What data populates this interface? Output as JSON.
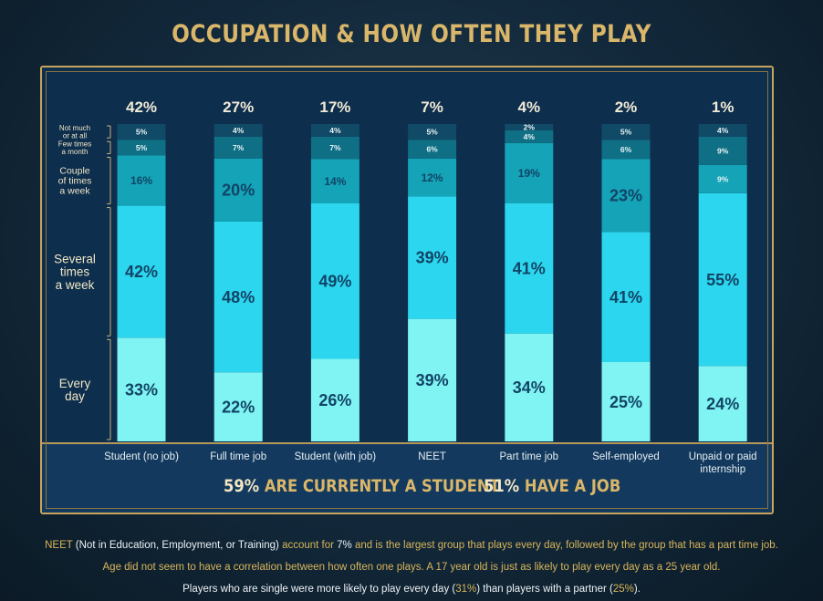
{
  "title": "OCCUPATION & HOW OFTEN THEY PLAY",
  "chart_data": {
    "type": "bar",
    "stacked": true,
    "categories": [
      "Student (no job)",
      "Full time job",
      "Student (with job)",
      "NEET",
      "Part time job",
      "Self-employed",
      "Unpaid or paid internship"
    ],
    "category_share": [
      "42%",
      "27%",
      "17%",
      "7%",
      "4%",
      "2%",
      "1%"
    ],
    "series": [
      {
        "name": "Every day",
        "values": [
          33,
          22,
          26,
          39,
          34,
          25,
          24
        ],
        "color": "#7ff4f2"
      },
      {
        "name": "Several times a week",
        "values": [
          42,
          48,
          49,
          39,
          41,
          41,
          55
        ],
        "color": "#2cd6ee"
      },
      {
        "name": "Couple of times a week",
        "values": [
          16,
          20,
          14,
          12,
          19,
          23,
          9
        ],
        "color": "#14a3b7"
      },
      {
        "name": "Few times a month",
        "values": [
          5,
          7,
          7,
          6,
          4,
          6,
          9
        ],
        "color": "#0f6f85"
      },
      {
        "name": "Not much or at all",
        "values": [
          5,
          4,
          4,
          5,
          2,
          5,
          4
        ],
        "color": "#114a66"
      }
    ],
    "series_labels": [
      [
        "Every",
        "day"
      ],
      [
        "Several",
        "times",
        "a week"
      ],
      [
        "Couple",
        "of times",
        "a week"
      ],
      [
        "Few times",
        "a month"
      ],
      [
        "Not much",
        "or at all"
      ]
    ],
    "ylim": [
      0,
      100
    ],
    "grid": false,
    "legend": "left"
  },
  "summary": {
    "student_pct": "59%",
    "student_text": "ARE CURRENTLY A STUDENT",
    "job_pct": "51%",
    "job_text": "HAVE A JOB"
  },
  "notes": {
    "line1": {
      "a": "NEET",
      "b": " (Not in Education, Employment, or Training) ",
      "c": "account for ",
      "d": "7%",
      "e": " and is the largest group that plays every day, followed by the group that has a part time job."
    },
    "line2": "Age did not seem to have a correlation between how often one plays. A 17 year old is just as likely to play every day as a 25 year old.",
    "line3": {
      "a": "Players who are single were more likely to play every day (",
      "b": "31%",
      "c": ") than players with a partner (",
      "d": "25%",
      "e": ")."
    }
  }
}
